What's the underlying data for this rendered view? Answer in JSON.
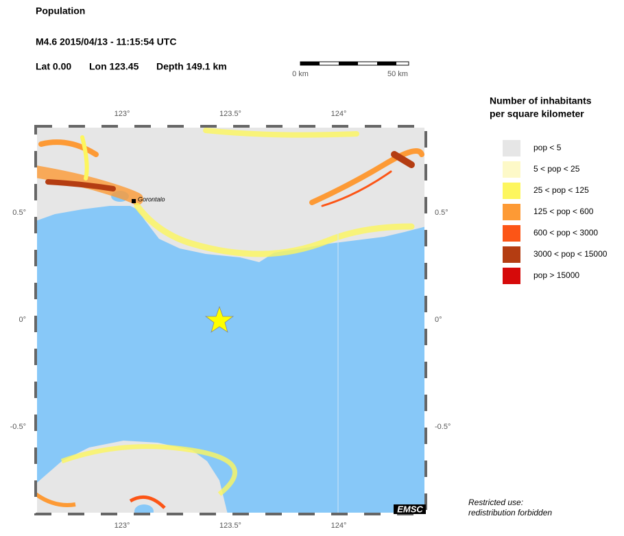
{
  "header": {
    "title": "Population",
    "event": "M4.6  2015/04/13 - 11:15:54 UTC",
    "lat": "Lat  0.00",
    "lon": "Lon 123.45",
    "depth": "Depth 149.1 km"
  },
  "scale_bar": {
    "start": "0 km",
    "end": "50 km"
  },
  "map": {
    "top_labels": [
      "123°",
      "123.5°",
      "124°"
    ],
    "bottom_labels": [
      "123°",
      "123.5°",
      "124°"
    ],
    "left_labels": [
      "0.5°",
      "0°",
      "-0.5°"
    ],
    "right_labels": [
      "0.5°",
      "0°",
      "-0.5°"
    ],
    "city": "Gorontalo",
    "watermark": "EMSC"
  },
  "legend": {
    "title": [
      "Number of inhabitants",
      "per square kilometer"
    ],
    "items": [
      {
        "label": "pop < 5",
        "color": "#e6e6e6"
      },
      {
        "label": "5 < pop < 25",
        "color": "#fdf9c8"
      },
      {
        "label": "25 < pop < 125",
        "color": "#fdf65e"
      },
      {
        "label": "125 < pop < 600",
        "color": "#fd9a35"
      },
      {
        "label": "600 < pop < 3000",
        "color": "#fc5516"
      },
      {
        "label": "3000 < pop < 15000",
        "color": "#b43d12"
      },
      {
        "label": "pop > 15000",
        "color": "#d60a0a"
      }
    ]
  },
  "notice": [
    "Restricted use:",
    "redistribution forbidden"
  ]
}
